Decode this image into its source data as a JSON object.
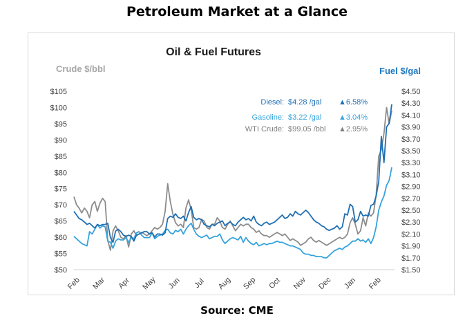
{
  "page": {
    "title": "Petroleum Market at a Glance",
    "source": "Source: CME"
  },
  "chart_data": {
    "type": "line",
    "title": "Oil & Fuel Futures",
    "left_axis_label": "Crude $/bbl",
    "right_axis_label": "Fuel $/gal",
    "left_ylim": [
      50,
      105
    ],
    "left_ticks": [
      "$105",
      "$100",
      "$95",
      "$90",
      "$85",
      "$80",
      "$75",
      "$70",
      "$65",
      "$60",
      "$55",
      "$50"
    ],
    "right_ylim": [
      1.5,
      4.5
    ],
    "right_ticks": [
      "$4.50",
      "$4.30",
      "$4.10",
      "$3.90",
      "$3.70",
      "$3.50",
      "$3.30",
      "$3.10",
      "$2.90",
      "$2.70",
      "$2.50",
      "$2.30",
      "$2.10",
      "$1.90",
      "$1.70",
      "$1.50"
    ],
    "x_labels": [
      "Feb",
      "Mar",
      "Apr",
      "May",
      "Jun",
      "Jul",
      "Aug",
      "Sep",
      "Oct",
      "Nov",
      "Dec",
      "Jan",
      "Feb"
    ],
    "grid": false,
    "annotations": [
      {
        "label": "Diesel:",
        "value": "$4.28 /gal",
        "change": "▲6.58%",
        "color": "#1f6fb4"
      },
      {
        "label": "Gasoline:",
        "value": "$3.22 /gal",
        "change": "▲3.04%",
        "color": "#35a3dc"
      },
      {
        "label": "WTI Crude:",
        "value": "$99.05 /bbl",
        "change": "▲2.95%",
        "color": "#7f7f7f"
      }
    ],
    "colors": {
      "diesel": "#1f6fb4",
      "gasoline": "#35a3dc",
      "crude": "#8c8c8c"
    },
    "series": [
      {
        "name": "Diesel",
        "axis": "right",
        "color": "#1f6fb4",
        "values": [
          2.48,
          2.42,
          2.36,
          2.34,
          2.3,
          2.26,
          2.28,
          2.24,
          2.2,
          2.26,
          2.24,
          2.26,
          2.26,
          2.28,
          2.04,
          1.96,
          2.15,
          2.18,
          2.14,
          2.08,
          2.06,
          2.08,
          2.06,
          1.98,
          2.08,
          2.1,
          2.12,
          2.14,
          2.14,
          2.1,
          2.12,
          2.05,
          2.1,
          2.1,
          2.08,
          2.12,
          2.36,
          2.4,
          2.38,
          2.44,
          2.38,
          2.36,
          2.4,
          2.32,
          2.46,
          2.56,
          2.38,
          2.34,
          2.36,
          2.34,
          2.26,
          2.24,
          2.22,
          2.26,
          2.24,
          2.28,
          2.3,
          2.32,
          2.24,
          2.28,
          2.3,
          2.26,
          2.24,
          2.3,
          2.34,
          2.38,
          2.34,
          2.36,
          2.32,
          2.4,
          2.3,
          2.26,
          2.24,
          2.28,
          2.3,
          2.26,
          2.28,
          2.3,
          2.34,
          2.38,
          2.42,
          2.36,
          2.38,
          2.44,
          2.4,
          2.48,
          2.44,
          2.42,
          2.46,
          2.5,
          2.46,
          2.4,
          2.34,
          2.3,
          2.28,
          2.24,
          2.22,
          2.18,
          2.16,
          2.18,
          2.2,
          2.24,
          2.18,
          2.22,
          2.44,
          2.42,
          2.6,
          2.56,
          2.3,
          2.34,
          2.48,
          2.4,
          2.42,
          2.4,
          2.58,
          2.6,
          2.74,
          2.98,
          3.74,
          3.3,
          3.9,
          3.96,
          4.28
        ]
      },
      {
        "name": "Gasoline",
        "axis": "right",
        "color": "#35a3dc",
        "values": [
          2.06,
          2.02,
          1.98,
          1.94,
          1.92,
          1.9,
          2.14,
          2.1,
          2.18,
          2.26,
          2.2,
          2.24,
          2.22,
          1.98,
          1.96,
          1.86,
          1.98,
          2.02,
          2.0,
          2.0,
          2.04,
          1.96,
          2.04,
          2.02,
          2.12,
          2.14,
          2.08,
          2.04,
          2.04,
          2.04,
          2.12,
          2.02,
          2.06,
          2.08,
          2.1,
          2.16,
          2.18,
          2.12,
          2.1,
          2.16,
          2.14,
          2.18,
          2.1,
          2.18,
          2.24,
          2.28,
          2.18,
          2.1,
          2.06,
          2.04,
          2.06,
          2.08,
          2.02,
          2.04,
          2.06,
          2.06,
          2.1,
          2.0,
          1.94,
          1.98,
          2.02,
          2.04,
          2.02,
          2.0,
          2.06,
          1.96,
          2.04,
          1.98,
          1.94,
          1.92,
          1.96,
          1.9,
          1.92,
          1.94,
          1.92,
          1.94,
          1.94,
          1.96,
          1.98,
          1.96,
          1.96,
          1.94,
          1.92,
          1.9,
          1.9,
          1.88,
          1.86,
          1.84,
          1.78,
          1.76,
          1.76,
          1.74,
          1.74,
          1.72,
          1.72,
          1.72,
          1.7,
          1.7,
          1.74,
          1.78,
          1.82,
          1.84,
          1.86,
          1.84,
          1.88,
          1.9,
          1.94,
          1.98,
          1.98,
          2.02,
          1.98,
          2.0,
          1.96,
          2.02,
          1.94,
          2.04,
          2.22,
          2.5,
          2.64,
          2.74,
          2.92,
          3.0,
          3.22
        ]
      },
      {
        "name": "WTI Crude",
        "axis": "left",
        "color": "#8c8c8c",
        "values": [
          72.5,
          70.0,
          69.0,
          67.5,
          69.0,
          68.0,
          66.0,
          70.0,
          71.0,
          68.0,
          70.5,
          72.0,
          71.0,
          59.0,
          56.0,
          62.0,
          63.5,
          62.0,
          60.0,
          59.5,
          60.5,
          57.0,
          61.0,
          62.0,
          60.5,
          61.0,
          61.5,
          61.0,
          60.5,
          61.0,
          62.0,
          63.0,
          62.5,
          63.0,
          64.0,
          68.0,
          76.5,
          71.0,
          67.0,
          64.5,
          63.5,
          64.0,
          63.0,
          69.0,
          71.5,
          68.5,
          63.0,
          62.5,
          63.0,
          65.5,
          65.0,
          63.0,
          62.5,
          64.0,
          64.0,
          66.0,
          65.0,
          63.0,
          62.5,
          64.0,
          65.0,
          63.5,
          62.0,
          63.0,
          64.0,
          63.5,
          64.0,
          64.0,
          63.0,
          62.5,
          61.5,
          62.0,
          61.0,
          60.5,
          60.5,
          60.0,
          60.5,
          61.0,
          61.5,
          61.0,
          60.5,
          61.0,
          60.0,
          59.0,
          59.5,
          59.0,
          58.5,
          57.5,
          58.0,
          58.5,
          59.5,
          60.0,
          59.0,
          58.5,
          59.0,
          58.5,
          58.0,
          57.5,
          58.0,
          58.5,
          59.0,
          59.5,
          60.0,
          59.5,
          60.0,
          61.0,
          64.5,
          66.0,
          64.0,
          61.0,
          62.0,
          66.0,
          63.5,
          67.5,
          66.5,
          67.5,
          73.0,
          85.0,
          87.0,
          92.0,
          100.0,
          95.0,
          99.05
        ]
      }
    ]
  }
}
